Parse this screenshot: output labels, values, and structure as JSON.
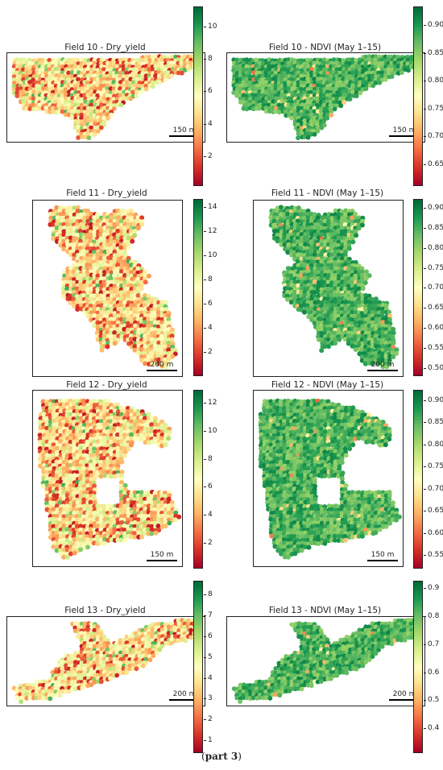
{
  "caption": {
    "open": "(",
    "bold": "part 3",
    "close": ")"
  },
  "colormaps": {
    "RdYlGn": [
      "#a50026",
      "#d73027",
      "#f46d43",
      "#fdae61",
      "#fee08b",
      "#ffffbf",
      "#d9ef8b",
      "#a6d96a",
      "#66bd63",
      "#1a9850",
      "#006837"
    ]
  },
  "chart_data": [
    {
      "type": "heatmap",
      "title": "Field 10 - Dry_yield",
      "scalebar": "150 m",
      "field": 10,
      "metric": "yield",
      "colorbar": {
        "min": 0.3,
        "max": 11.3,
        "ticks": [
          2,
          4,
          6,
          8,
          10
        ],
        "labels": [
          "2",
          "4",
          "6",
          "8",
          "10"
        ]
      }
    },
    {
      "type": "heatmap",
      "title": "Field 10 - NDVI (May 1–15)",
      "scalebar": "150 m",
      "field": 10,
      "metric": "ndvi",
      "colorbar": {
        "min": 0.615,
        "max": 0.935,
        "ticks": [
          0.65,
          0.7,
          0.75,
          0.8,
          0.85,
          0.9
        ],
        "labels": [
          "0.65",
          "0.70",
          "0.75",
          "0.80",
          "0.85",
          "0.90"
        ]
      }
    },
    {
      "type": "heatmap",
      "title": "Field 11 - Dry_yield",
      "scalebar": "200 m",
      "field": 11,
      "metric": "yield",
      "colorbar": {
        "min": 0.2,
        "max": 14.7,
        "ticks": [
          2,
          4,
          6,
          8,
          10,
          12,
          14
        ],
        "labels": [
          "2",
          "4",
          "6",
          "8",
          "10",
          "12",
          "14"
        ]
      }
    },
    {
      "type": "heatmap",
      "title": "Field 11 - NDVI (May 1–15)",
      "scalebar": "200 m",
      "field": 11,
      "metric": "ndvi",
      "colorbar": {
        "min": 0.485,
        "max": 0.925,
        "ticks": [
          0.5,
          0.55,
          0.6,
          0.65,
          0.7,
          0.75,
          0.8,
          0.85,
          0.9
        ],
        "labels": [
          "0.50",
          "0.55",
          "0.60",
          "0.65",
          "0.70",
          "0.75",
          "0.80",
          "0.85",
          "0.90"
        ]
      }
    },
    {
      "type": "heatmap",
      "title": "Field 12 - Dry_yield",
      "scalebar": "150 m",
      "field": 12,
      "metric": "yield",
      "colorbar": {
        "min": 0.3,
        "max": 13.0,
        "ticks": [
          2,
          4,
          6,
          8,
          10,
          12
        ],
        "labels": [
          "2",
          "4",
          "6",
          "8",
          "10",
          "12"
        ]
      }
    },
    {
      "type": "heatmap",
      "title": "Field 12 - NDVI (May 1–15)",
      "scalebar": "150 m",
      "field": 12,
      "metric": "ndvi",
      "colorbar": {
        "min": 0.525,
        "max": 0.925,
        "ticks": [
          0.55,
          0.6,
          0.65,
          0.7,
          0.75,
          0.8,
          0.85,
          0.9
        ],
        "labels": [
          "0.55",
          "0.60",
          "0.65",
          "0.70",
          "0.75",
          "0.80",
          "0.85",
          "0.90"
        ]
      }
    },
    {
      "type": "heatmap",
      "title": "Field 13 - Dry_yield",
      "scalebar": "200 m",
      "field": 13,
      "metric": "yield",
      "colorbar": {
        "min": 0.5,
        "max": 8.7,
        "ticks": [
          1,
          2,
          3,
          4,
          5,
          6,
          7,
          8
        ],
        "labels": [
          "1",
          "2",
          "3",
          "4",
          "5",
          "6",
          "7",
          "8"
        ]
      }
    },
    {
      "type": "heatmap",
      "title": "Field 13 - NDVI (May 1–15)",
      "scalebar": "200 m",
      "field": 13,
      "metric": "ndvi",
      "colorbar": {
        "min": 0.32,
        "max": 0.93,
        "ticks": [
          0.4,
          0.5,
          0.6,
          0.7,
          0.8,
          0.9
        ],
        "labels": [
          "0.4",
          "0.5",
          "0.6",
          "0.7",
          "0.8",
          "0.9"
        ]
      }
    }
  ]
}
